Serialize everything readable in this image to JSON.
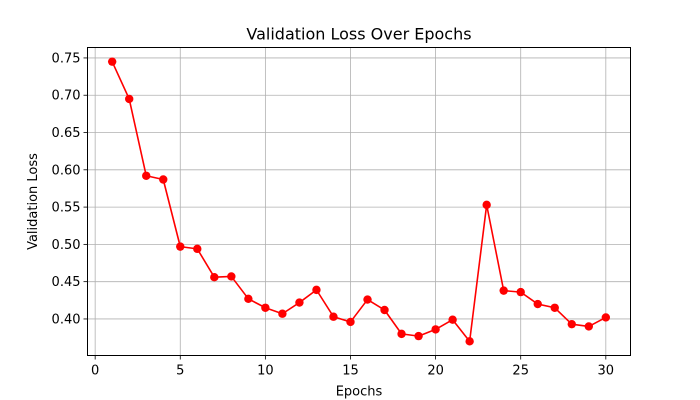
{
  "chart_data": {
    "type": "line",
    "title": "Validation Loss Over Epochs",
    "xlabel": "Epochs",
    "ylabel": "Validation Loss",
    "xlim": [
      -0.45,
      31.45
    ],
    "ylim": [
      0.351,
      0.764
    ],
    "xticks": [
      0,
      5,
      10,
      15,
      20,
      25,
      30
    ],
    "xtick_labels": [
      "0",
      "5",
      "10",
      "15",
      "20",
      "25",
      "30"
    ],
    "yticks": [
      0.4,
      0.45,
      0.5,
      0.55,
      0.6,
      0.65,
      0.7,
      0.75
    ],
    "ytick_labels": [
      "0.40",
      "0.45",
      "0.50",
      "0.55",
      "0.60",
      "0.65",
      "0.70",
      "0.75"
    ],
    "grid": true,
    "series": [
      {
        "color": "#ff0000",
        "marker": "circle",
        "x": [
          1,
          2,
          3,
          4,
          5,
          6,
          7,
          8,
          9,
          10,
          11,
          12,
          13,
          14,
          15,
          16,
          17,
          18,
          19,
          20,
          21,
          22,
          23,
          24,
          25,
          26,
          27,
          28,
          29,
          30
        ],
        "values": [
          0.745,
          0.695,
          0.592,
          0.587,
          0.497,
          0.494,
          0.456,
          0.457,
          0.427,
          0.415,
          0.407,
          0.422,
          0.439,
          0.403,
          0.396,
          0.426,
          0.412,
          0.38,
          0.377,
          0.386,
          0.399,
          0.37,
          0.553,
          0.438,
          0.436,
          0.42,
          0.415,
          0.393,
          0.39,
          0.402
        ]
      }
    ]
  }
}
